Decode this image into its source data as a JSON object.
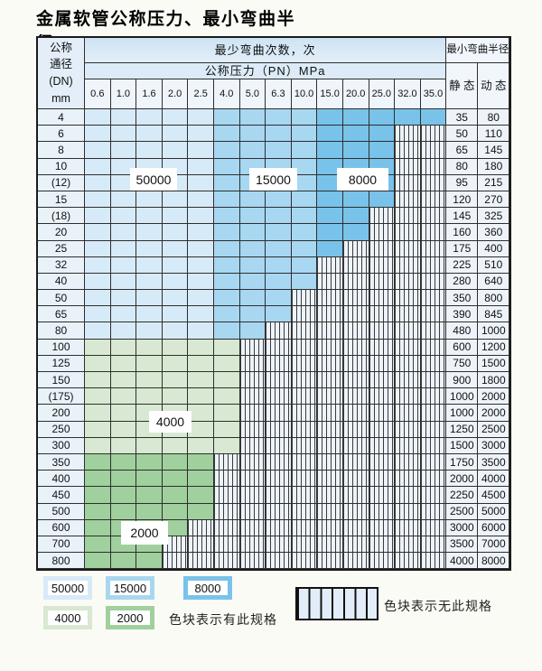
{
  "title": "金属软管公称压力、最小弯曲半径",
  "table": {
    "header": {
      "dn_lines": [
        "公称",
        "通径",
        "(DN)",
        "mm"
      ],
      "cycles": "最少弯曲次数，次",
      "pressure": "公称压力（PN）MPa",
      "radius": "最小弯曲半径",
      "static": "静 态",
      "dynamic": "动 态",
      "pressures": [
        "0.6",
        "1.0",
        "1.6",
        "2.0",
        "2.5",
        "4.0",
        "5.0",
        "6.3",
        "10.0",
        "15.0",
        "20.0",
        "25.0",
        "32.0",
        "35.0"
      ]
    },
    "blue_zones": {
      "light_end": 5,
      "medium_end": 9
    },
    "rows": [
      {
        "dn": "4",
        "colored": 14,
        "palette": "blue",
        "static": "35",
        "dynamic": "80"
      },
      {
        "dn": "6",
        "colored": 12,
        "palette": "blue",
        "static": "50",
        "dynamic": "110"
      },
      {
        "dn": "8",
        "colored": 12,
        "palette": "blue",
        "static": "65",
        "dynamic": "145"
      },
      {
        "dn": "10",
        "colored": 12,
        "palette": "blue",
        "static": "80",
        "dynamic": "180"
      },
      {
        "dn": "(12)",
        "colored": 12,
        "palette": "blue",
        "static": "95",
        "dynamic": "215"
      },
      {
        "dn": "15",
        "colored": 12,
        "palette": "blue",
        "static": "120",
        "dynamic": "270"
      },
      {
        "dn": "(18)",
        "colored": 11,
        "palette": "blue",
        "static": "145",
        "dynamic": "325"
      },
      {
        "dn": "20",
        "colored": 11,
        "palette": "blue",
        "static": "160",
        "dynamic": "360"
      },
      {
        "dn": "25",
        "colored": 10,
        "palette": "blue",
        "static": "175",
        "dynamic": "400"
      },
      {
        "dn": "32",
        "colored": 9,
        "palette": "blue",
        "static": "225",
        "dynamic": "510"
      },
      {
        "dn": "40",
        "colored": 9,
        "palette": "blue",
        "static": "280",
        "dynamic": "640"
      },
      {
        "dn": "50",
        "colored": 8,
        "palette": "blue",
        "static": "350",
        "dynamic": "800"
      },
      {
        "dn": "65",
        "colored": 8,
        "palette": "blue",
        "static": "390",
        "dynamic": "845"
      },
      {
        "dn": "80",
        "colored": 7,
        "palette": "blue",
        "static": "480",
        "dynamic": "1000"
      },
      {
        "dn": "100",
        "colored": 6,
        "palette": "green_light",
        "static": "600",
        "dynamic": "1200"
      },
      {
        "dn": "125",
        "colored": 6,
        "palette": "green_light",
        "static": "750",
        "dynamic": "1500"
      },
      {
        "dn": "150",
        "colored": 6,
        "palette": "green_light",
        "static": "900",
        "dynamic": "1800"
      },
      {
        "dn": "(175)",
        "colored": 6,
        "palette": "green_light",
        "static": "1000",
        "dynamic": "2000"
      },
      {
        "dn": "200",
        "colored": 6,
        "palette": "green_light",
        "static": "1000",
        "dynamic": "2000"
      },
      {
        "dn": "250",
        "colored": 6,
        "palette": "green_light",
        "static": "1250",
        "dynamic": "2500"
      },
      {
        "dn": "300",
        "colored": 6,
        "palette": "green_light",
        "static": "1500",
        "dynamic": "3000"
      },
      {
        "dn": "350",
        "colored": 5,
        "palette": "green_dark",
        "static": "1750",
        "dynamic": "3500"
      },
      {
        "dn": "400",
        "colored": 5,
        "palette": "green_dark",
        "static": "2000",
        "dynamic": "4000"
      },
      {
        "dn": "450",
        "colored": 5,
        "palette": "green_dark",
        "static": "2250",
        "dynamic": "4500"
      },
      {
        "dn": "500",
        "colored": 5,
        "palette": "green_dark",
        "static": "2500",
        "dynamic": "5000"
      },
      {
        "dn": "600",
        "colored": 4,
        "palette": "green_dark",
        "static": "3000",
        "dynamic": "6000"
      },
      {
        "dn": "700",
        "colored": 3,
        "palette": "green_dark",
        "static": "3500",
        "dynamic": "7000"
      },
      {
        "dn": "800",
        "colored": 3,
        "palette": "green_dark",
        "static": "4000",
        "dynamic": "8000"
      }
    ]
  },
  "overlays": [
    {
      "text": "50000"
    },
    {
      "text": "15000"
    },
    {
      "text": "8000"
    },
    {
      "text": "4000"
    },
    {
      "text": "2000"
    }
  ],
  "legend": {
    "items": [
      {
        "label": "50000",
        "color_key": "blue_light"
      },
      {
        "label": "15000",
        "color_key": "blue_mid"
      },
      {
        "label": "8000",
        "color_key": "blue_dark"
      },
      {
        "label": "4000",
        "color_key": "green_light"
      },
      {
        "label": "2000",
        "color_key": "green_dark"
      }
    ],
    "available_note": "色块表示有此规格",
    "unavailable_note": "色块表示无此规格"
  },
  "colors": {
    "blue_light": "#d7eaf8",
    "blue_mid": "#a8d7f1",
    "blue_dark": "#79c3ea",
    "green_light": "#d8e8d2",
    "green_dark": "#a0d09d",
    "hatch_bg": "#edf3fb",
    "grid_line": "#2e2e2e"
  }
}
